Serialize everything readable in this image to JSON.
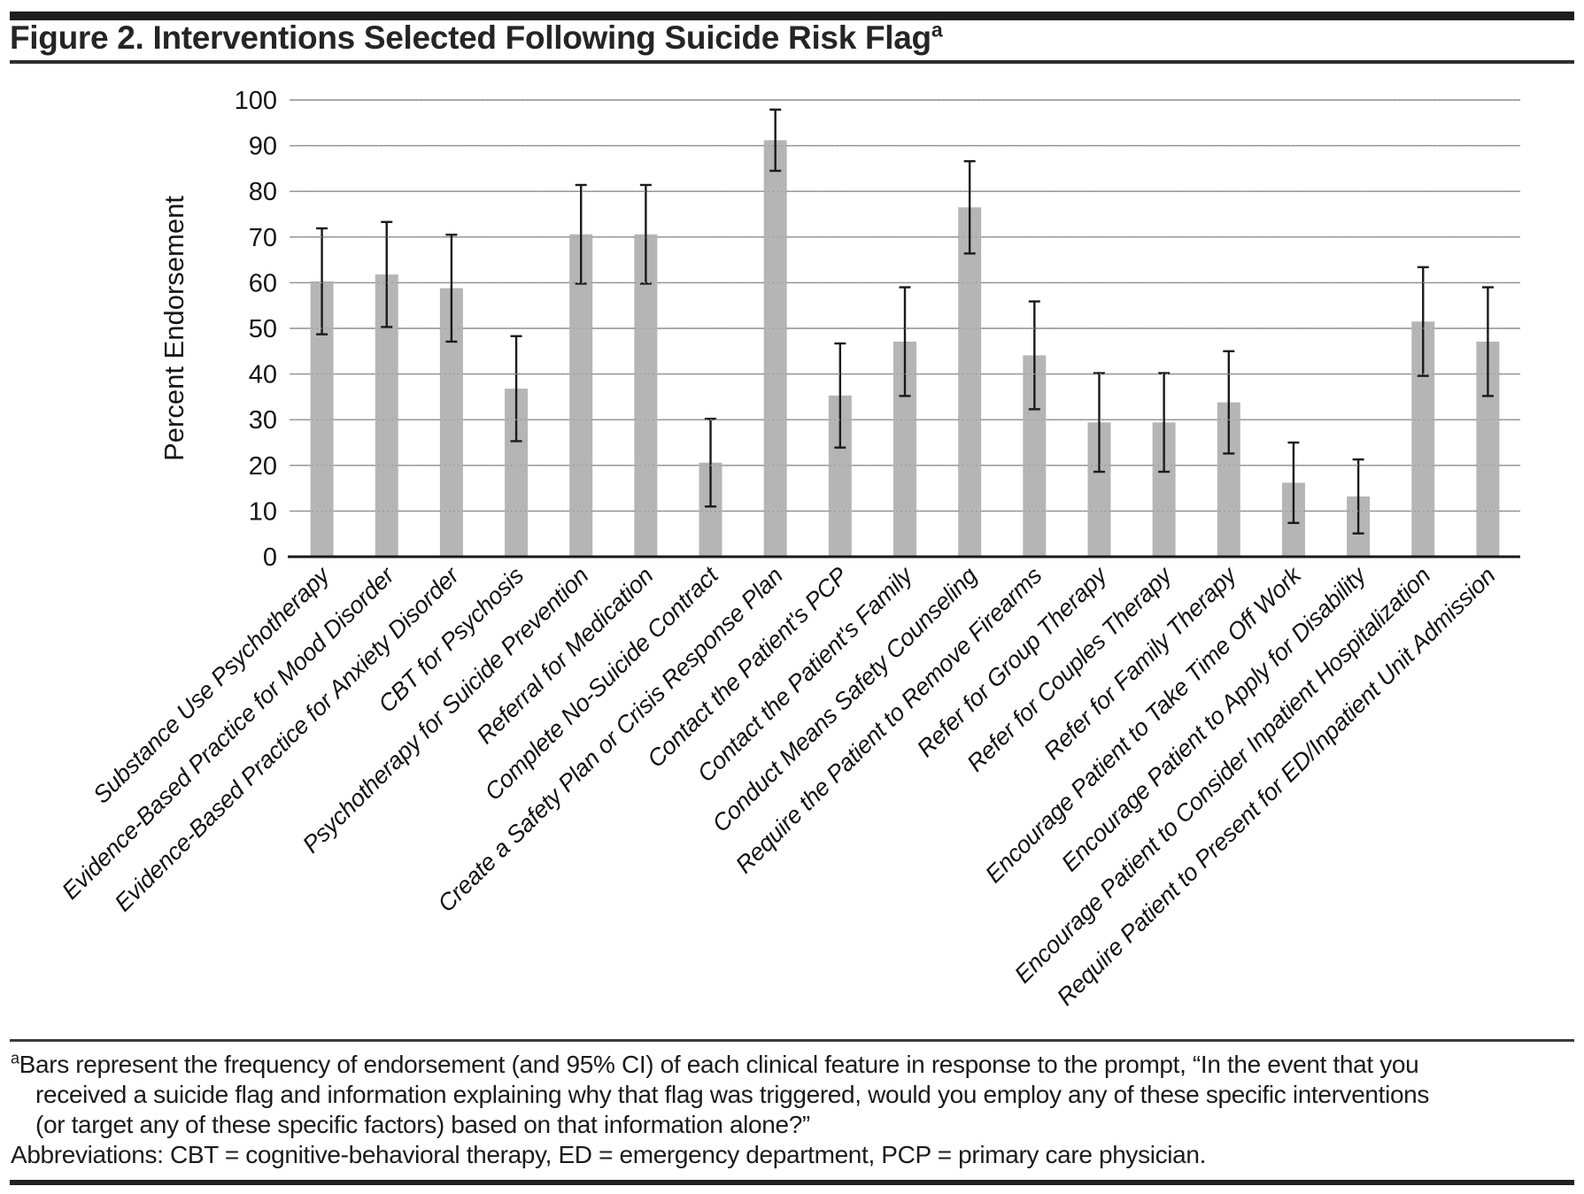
{
  "title": {
    "text": "Figure 2. Interventions Selected Following Suicide Risk Flag",
    "superscript": "a"
  },
  "chart_data": {
    "type": "bar",
    "title": "Figure 2. Interventions Selected Following Suicide Risk Flag",
    "ylabel": "Percent Endorsement",
    "ylim": [
      0,
      100
    ],
    "ytick_interval": 10,
    "yticks": [
      0,
      10,
      20,
      30,
      40,
      50,
      60,
      70,
      80,
      90,
      100
    ],
    "grid": "horizontal",
    "legend": "none",
    "bar_color": "#b5b5b5",
    "error_bar_color": "#1a1a1a",
    "gridline_color": "#8a8a8a",
    "categories": [
      "Substance Use Psychotherapy",
      "Evidence-Based Practice for Mood Disorder",
      "Evidence-Based Practice for Anxiety Disorder",
      "CBT for Psychosis",
      "Psychotherapy for Suicide Prevention",
      "Referral for Medication",
      "Complete No-Suicide Contract",
      "Create a Safety Plan or Crisis Response Plan",
      "Contact the Patient's PCP",
      "Contact the Patient's Family",
      "Conduct Means Safety Counseling",
      "Require the Patient to Remove Firearms",
      "Refer for Group Therapy",
      "Refer for Couples Therapy",
      "Refer for Family Therapy",
      "Encourage Patient to Take Time Off Work",
      "Encourage Patient to Apply for Disability",
      "Encourage Patient to Consider Inpatient Hospitalization",
      "Require Patient to Present for ED/Inpatient Unit Admission"
    ],
    "values": [
      60.3,
      61.8,
      58.8,
      36.8,
      70.6,
      70.6,
      20.6,
      91.2,
      35.3,
      47.1,
      76.5,
      44.1,
      29.4,
      29.4,
      33.8,
      16.2,
      13.2,
      51.5,
      47.1
    ],
    "ci_low": [
      48.7,
      50.3,
      47.1,
      25.3,
      59.8,
      59.8,
      11.0,
      84.5,
      23.9,
      35.2,
      66.4,
      32.3,
      18.6,
      18.6,
      22.6,
      7.4,
      5.1,
      39.6,
      35.2
    ],
    "ci_high": [
      71.9,
      73.3,
      70.5,
      48.3,
      81.4,
      81.4,
      30.2,
      97.9,
      46.7,
      59.0,
      86.6,
      55.9,
      40.2,
      40.2,
      45.0,
      25.0,
      21.3,
      63.4,
      59.0
    ]
  },
  "footnote": {
    "superscript": "a",
    "lines": [
      "Bars represent the frequency of endorsement (and 95% CI) of each clinical feature in response to the prompt, “In the event that you",
      "received a suicide flag and information explaining why that flag was triggered, would you employ any of these specific interventions",
      "(or target any of these specific factors) based on that information alone?”",
      "Abbreviations: CBT = cognitive-behavioral therapy, ED = emergency department, PCP = primary care physician."
    ]
  }
}
